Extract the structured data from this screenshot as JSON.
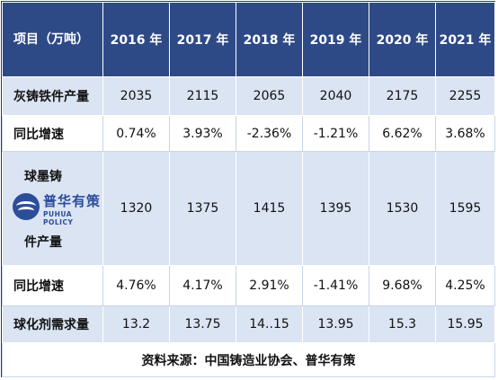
{
  "table": {
    "header": {
      "first_col": "项目（万吨）",
      "years": [
        "2016 年",
        "2017 年",
        "2018 年",
        "2019 年",
        "2020 年",
        "2021 年"
      ]
    },
    "rows": [
      {
        "label": "灰铸铁件产量",
        "values": [
          "2035",
          "2115",
          "2065",
          "2040",
          "2175",
          "2255"
        ]
      },
      {
        "label": "同比增速",
        "values": [
          "0.74%",
          "3.93%",
          "-2.36%",
          "-1.21%",
          "6.62%",
          "3.68%"
        ]
      },
      {
        "label_top": "球墨铸",
        "label_bottom": "件产量",
        "values": [
          "1320",
          "1375",
          "1415",
          "1395",
          "1530",
          "1595"
        ]
      },
      {
        "label": "同比增速",
        "values": [
          "4.76%",
          "4.17%",
          "2.91%",
          "-1.41%",
          "9.68%",
          "4.25%"
        ]
      },
      {
        "label": "球化剂需求量",
        "values": [
          "13.2",
          "13.75",
          "14..15",
          "13.95",
          "15.3",
          "15.95"
        ]
      }
    ],
    "source": "资料来源：中国铸造业协会、普华有策"
  },
  "watermark": {
    "name_cn": "普华有策",
    "name_en": "PUHUA POLICY",
    "icon": "puhua-logo-icon",
    "color": "#2c4d9a"
  },
  "colors": {
    "header_bg": "#2e4a86",
    "row_light": "#dbe4f3",
    "row_white": "#ffffff"
  },
  "chart_data": {
    "type": "table",
    "columns": [
      "项目（万吨）",
      "2016 年",
      "2017 年",
      "2018 年",
      "2019 年",
      "2020 年",
      "2021 年"
    ],
    "rows": [
      [
        "灰铸铁件产量",
        2035,
        2115,
        2065,
        2040,
        2175,
        2255
      ],
      [
        "同比增速",
        "0.74%",
        "3.93%",
        "-2.36%",
        "-1.21%",
        "6.62%",
        "3.68%"
      ],
      [
        "球墨铸件产量",
        1320,
        1375,
        1415,
        1395,
        1530,
        1595
      ],
      [
        "同比增速",
        "4.76%",
        "4.17%",
        "2.91%",
        "-1.41%",
        "9.68%",
        "4.25%"
      ],
      [
        "球化剂需求量",
        13.2,
        13.75,
        "14..15",
        13.95,
        15.3,
        15.95
      ]
    ]
  }
}
